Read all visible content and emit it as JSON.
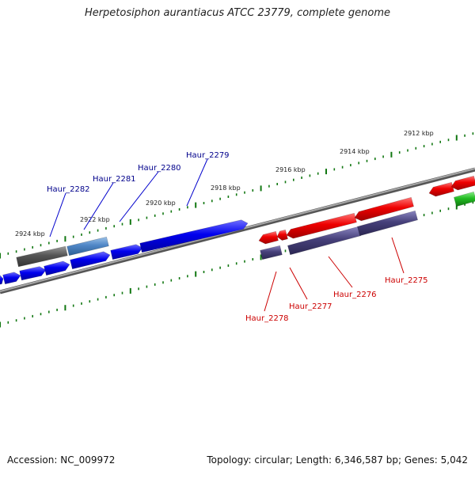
{
  "header": {
    "title": "Herpetosiphon aurantiacus ATCC 23779, complete genome"
  },
  "footer": {
    "accession": "Accession: NC_009972",
    "summary": "Topology: circular; Length: 6,346,587 bp; Genes: 5,042"
  },
  "colors": {
    "forward_gene": "#0000ee",
    "reverse_gene": "#ee0000",
    "pseudo_gene": "#555555",
    "light_blue_gene": "#4f86c6",
    "purple_gene": "#46407a",
    "green_gene": "#22bb22",
    "backbone": "#7a7a7a",
    "ticks": "#117711",
    "blue_label": "#00008b",
    "red_label": "#cc0000"
  },
  "scale_labels": [
    "2912 kbp",
    "2914 kbp",
    "2916 kbp",
    "2918 kbp",
    "2920 kbp",
    "2922 kbp",
    "2924 kbp"
  ],
  "gene_labels": {
    "top": [
      "Haur_2282",
      "Haur_2281",
      "Haur_2280",
      "Haur_2279"
    ],
    "bottom": [
      "Haur_2278",
      "Haur_2277",
      "Haur_2276",
      "Haur_2275"
    ]
  }
}
